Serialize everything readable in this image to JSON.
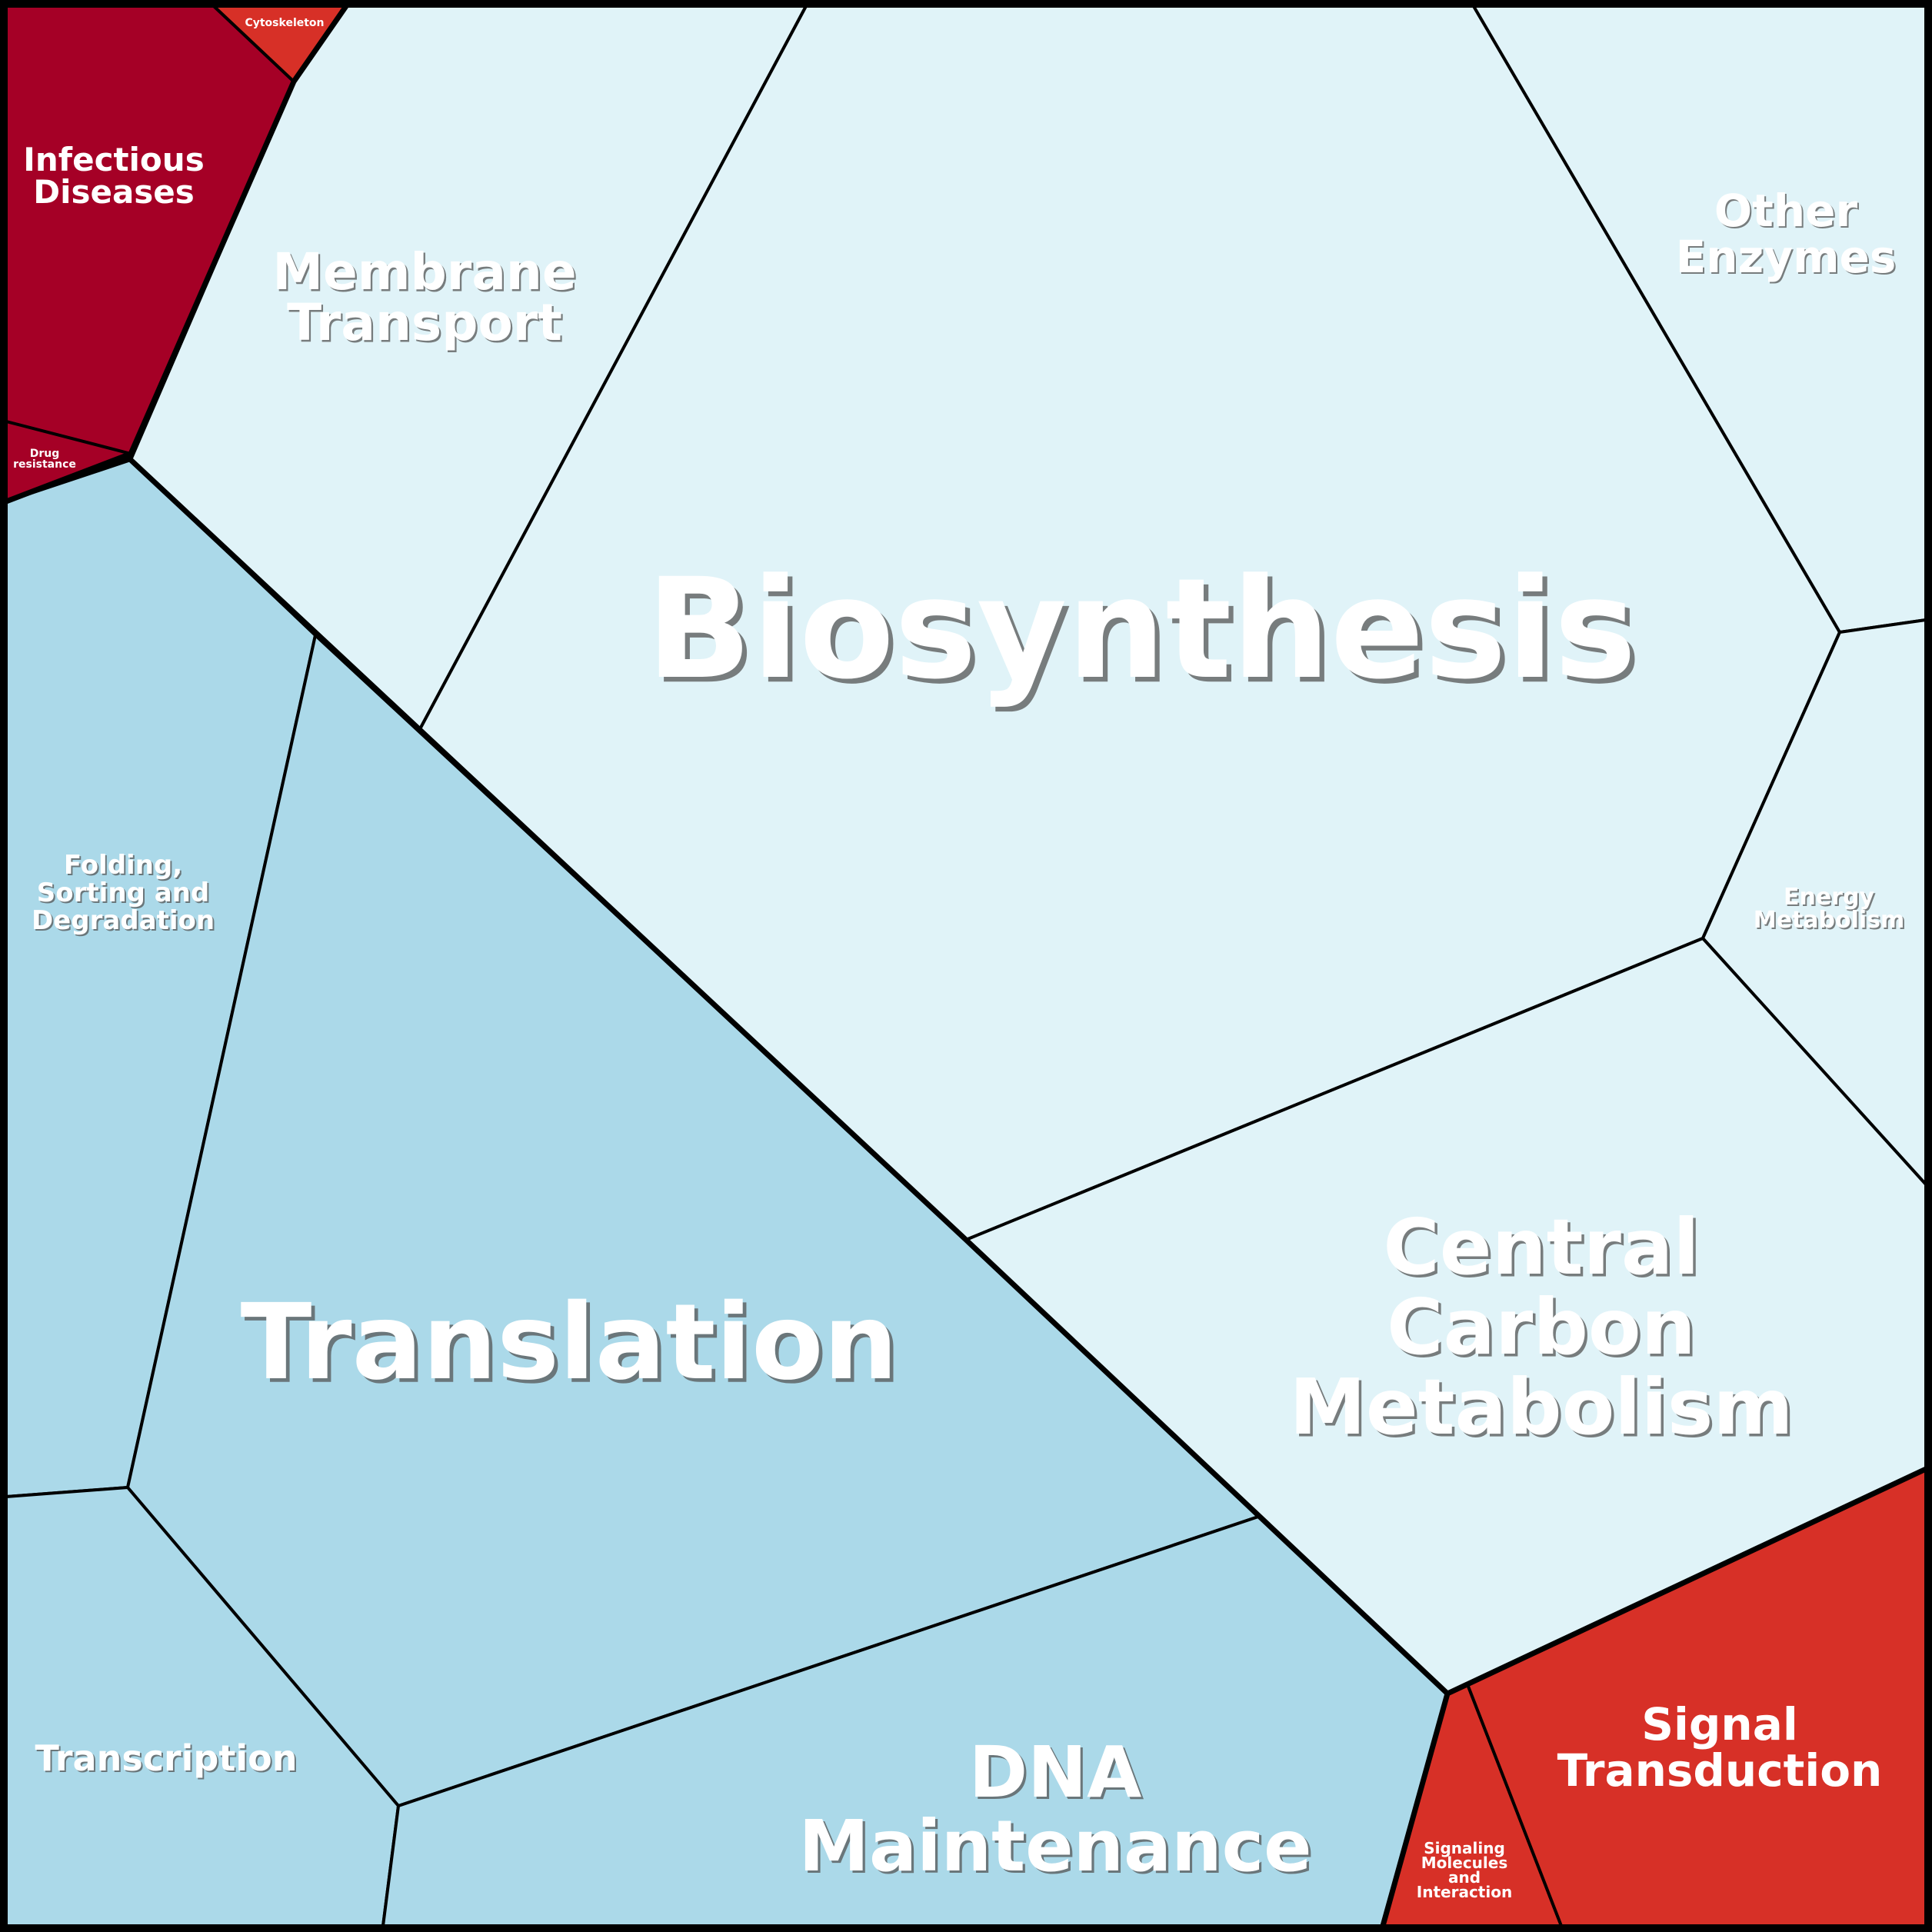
{
  "diagram": {
    "palette": {
      "dark_red": "#a50026",
      "red": "#d73027",
      "pale_blue": "#e0f3f8",
      "light_blue": "#abd9e9",
      "border": "#000000",
      "text": "#ffffff"
    },
    "cells": [
      {
        "key": "infectious_diseases",
        "label": "Infectious Diseases",
        "group": "dark-red"
      },
      {
        "key": "cytoskeleton",
        "label": "Cytoskeleton",
        "group": "red"
      },
      {
        "key": "drug_resistance",
        "label": "Drug resistance",
        "group": "dark-red"
      },
      {
        "key": "membrane_transport",
        "label": "Membrane Transport",
        "group": "pale-blue"
      },
      {
        "key": "biosynthesis",
        "label": "Biosynthesis",
        "group": "pale-blue"
      },
      {
        "key": "other_enzymes",
        "label": "Other Enzymes",
        "group": "pale-blue"
      },
      {
        "key": "energy_metabolism",
        "label": "Energy Metabolism",
        "group": "pale-blue"
      },
      {
        "key": "central_carbon_metabolism",
        "label": "Central Carbon Metabolism",
        "group": "pale-blue"
      },
      {
        "key": "folding_sorting_degradation",
        "label": "Folding, Sorting and Degradation",
        "group": "light-blue"
      },
      {
        "key": "translation",
        "label": "Translation",
        "group": "light-blue"
      },
      {
        "key": "transcription",
        "label": "Transcription",
        "group": "light-blue"
      },
      {
        "key": "dna_maintenance",
        "label": "DNA Maintenance",
        "group": "light-blue"
      },
      {
        "key": "signaling_molecules",
        "label": "Signaling Molecules and Interaction",
        "group": "red"
      },
      {
        "key": "signal_transduction",
        "label": "Signal Transduction",
        "group": "red"
      }
    ]
  }
}
